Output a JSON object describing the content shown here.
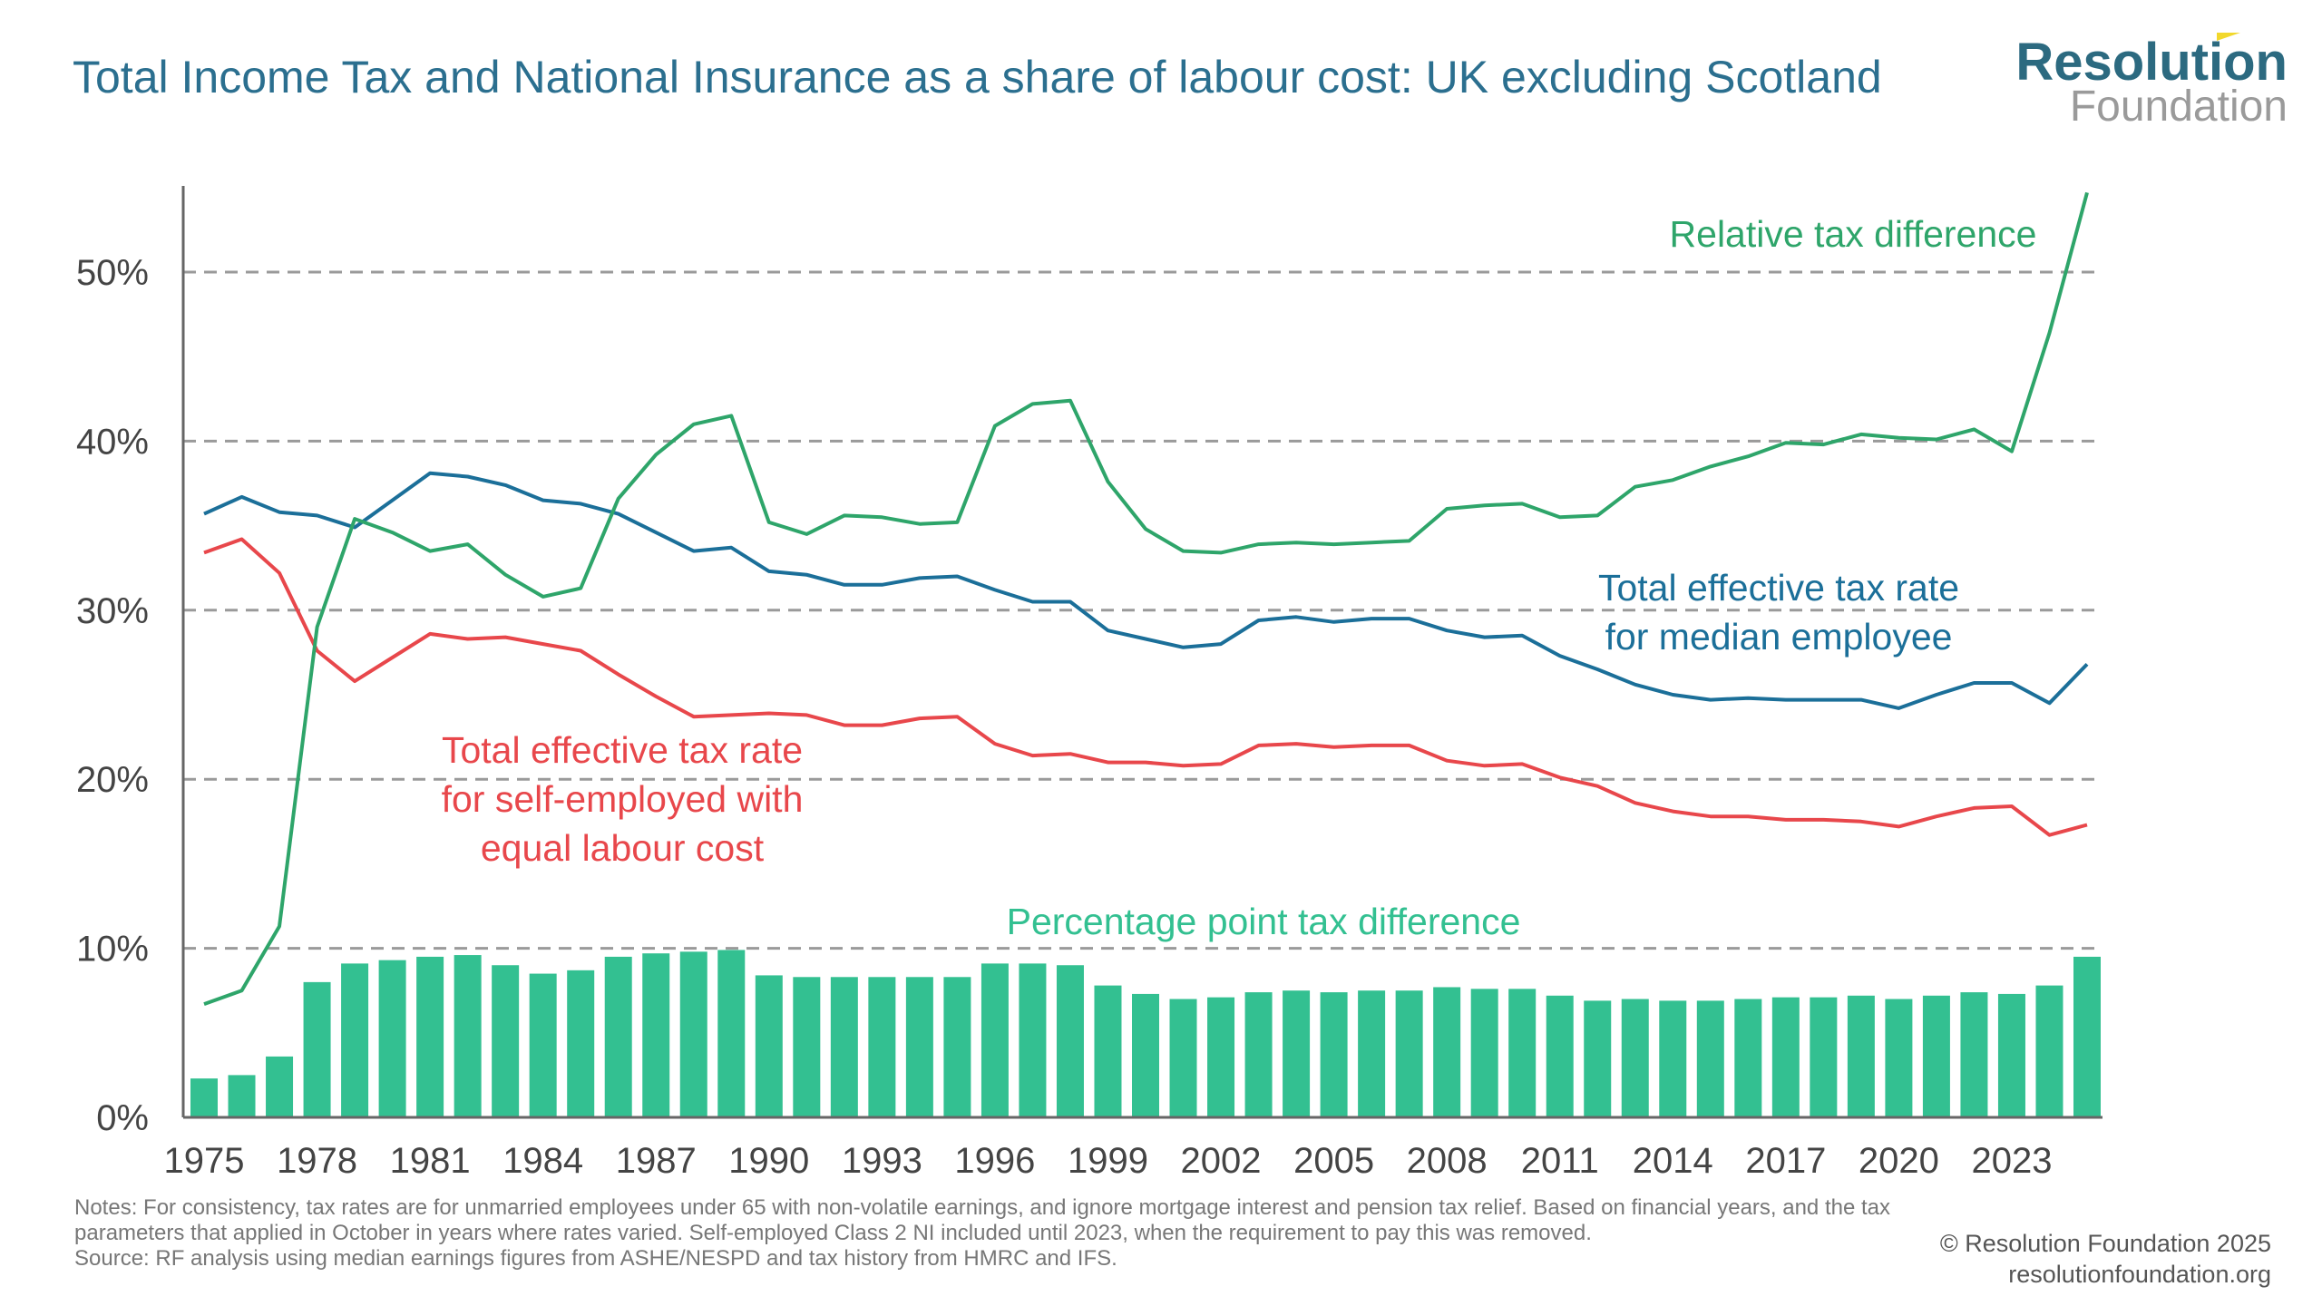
{
  "title": "Total Income Tax and National Insurance as a share of labour cost: UK excluding Scotland",
  "logo": {
    "line1": "Resolution",
    "line2": "Foundation"
  },
  "notes": "Notes: For consistency, tax rates are for unmarried employees under 65 with non-volatile earnings, and ignore mortgage interest and pension tax relief. Based on financial years, and the tax parameters that applied in October in years where rates varied. Self-employed Class 2 NI included until 2023, when the requirement to pay this was removed.",
  "source": "Source: RF analysis using median earnings figures from ASHE/NESPD and tax history from HMRC and IFS.",
  "credit": {
    "copyright": "© Resolution Foundation 2025",
    "website": "resolutionfoundation.org"
  },
  "chart_data": {
    "type": "bar+line",
    "title": "Total Income Tax and National Insurance as a share of labour cost: UK excluding Scotland",
    "ylim": [
      0,
      55
    ],
    "yticks": [
      "0%",
      "10%",
      "20%",
      "30%",
      "40%",
      "50%"
    ],
    "xticks": [
      "1975",
      "1978",
      "1981",
      "1984",
      "1987",
      "1990",
      "1993",
      "1996",
      "1999",
      "2002",
      "2005",
      "2008",
      "2011",
      "2014",
      "2017",
      "2020",
      "2023"
    ],
    "grid": "horizontal dashed",
    "colors": {
      "employee": "#1b6f99",
      "self_employed": "#e8474b",
      "relative": "#2ea56a",
      "bars": "#33c091"
    },
    "x": [
      1975,
      1976,
      1977,
      1978,
      1979,
      1980,
      1981,
      1982,
      1983,
      1984,
      1985,
      1986,
      1987,
      1988,
      1989,
      1990,
      1991,
      1992,
      1993,
      1994,
      1995,
      1996,
      1997,
      1998,
      1999,
      2000,
      2001,
      2002,
      2003,
      2004,
      2005,
      2006,
      2007,
      2008,
      2009,
      2010,
      2011,
      2012,
      2013,
      2014,
      2015,
      2016,
      2017,
      2018,
      2019,
      2020,
      2021,
      2022,
      2023,
      2024,
      2025
    ],
    "series": [
      {
        "name": "Percentage point tax difference",
        "type": "bar",
        "values": [
          2.3,
          2.5,
          3.6,
          8.0,
          9.1,
          9.3,
          9.5,
          9.6,
          9.0,
          8.5,
          8.7,
          9.5,
          9.7,
          9.8,
          9.9,
          8.4,
          8.3,
          8.3,
          8.3,
          8.3,
          8.3,
          9.1,
          9.1,
          9.0,
          7.8,
          7.3,
          7.0,
          7.1,
          7.4,
          7.5,
          7.4,
          7.5,
          7.5,
          7.7,
          7.6,
          7.6,
          7.2,
          6.9,
          7.0,
          6.9,
          6.9,
          7.0,
          7.1,
          7.1,
          7.2,
          7.0,
          7.2,
          7.4,
          7.3,
          7.8,
          9.5
        ]
      },
      {
        "name": "Total effective tax rate for median employee",
        "type": "line",
        "values": [
          35.7,
          36.7,
          35.8,
          35.6,
          34.9,
          36.5,
          38.1,
          37.9,
          37.4,
          36.5,
          36.3,
          35.7,
          34.6,
          33.5,
          33.7,
          32.3,
          32.1,
          31.5,
          31.5,
          31.9,
          32.0,
          31.2,
          30.5,
          30.5,
          28.8,
          28.3,
          27.8,
          28.0,
          29.4,
          29.6,
          29.3,
          29.5,
          29.5,
          28.8,
          28.4,
          28.5,
          27.3,
          26.5,
          25.6,
          25.0,
          24.7,
          24.8,
          24.7,
          24.7,
          24.7,
          24.2,
          25.0,
          25.7,
          25.7,
          24.5,
          26.8
        ]
      },
      {
        "name": "Total effective tax rate for self-employed with equal labour cost",
        "type": "line",
        "values": [
          33.4,
          34.2,
          32.2,
          27.6,
          25.8,
          27.2,
          28.6,
          28.3,
          28.4,
          28.0,
          27.6,
          26.2,
          24.9,
          23.7,
          23.8,
          23.9,
          23.8,
          23.2,
          23.2,
          23.6,
          23.7,
          22.1,
          21.4,
          21.5,
          21.0,
          21.0,
          20.8,
          20.9,
          22.0,
          22.1,
          21.9,
          22.0,
          22.0,
          21.1,
          20.8,
          20.9,
          20.1,
          19.6,
          18.6,
          18.1,
          17.8,
          17.8,
          17.6,
          17.6,
          17.5,
          17.2,
          17.8,
          18.3,
          18.4,
          16.7,
          17.3
        ]
      },
      {
        "name": "Relative tax difference",
        "type": "line",
        "values": [
          6.7,
          7.5,
          11.3,
          29.0,
          35.4,
          34.6,
          33.5,
          33.9,
          32.1,
          30.8,
          31.3,
          36.6,
          39.2,
          41.0,
          41.5,
          35.2,
          34.5,
          35.6,
          35.5,
          35.1,
          35.2,
          40.9,
          42.2,
          42.4,
          37.6,
          34.8,
          33.5,
          33.4,
          33.9,
          34.0,
          33.9,
          34.0,
          34.1,
          36.0,
          36.2,
          36.3,
          35.5,
          35.6,
          37.3,
          37.7,
          38.5,
          39.1,
          39.9,
          39.8,
          40.4,
          40.2,
          40.1,
          40.7,
          39.4,
          46.4,
          54.7
        ]
      }
    ],
    "annotations": {
      "relative": "Relative tax difference",
      "employee_1": "Total effective tax rate",
      "employee_2": "for median employee",
      "self_1": "Total effective tax rate",
      "self_2": "for self-employed with",
      "self_3": "equal labour cost",
      "bars": "Percentage point tax difference"
    }
  }
}
